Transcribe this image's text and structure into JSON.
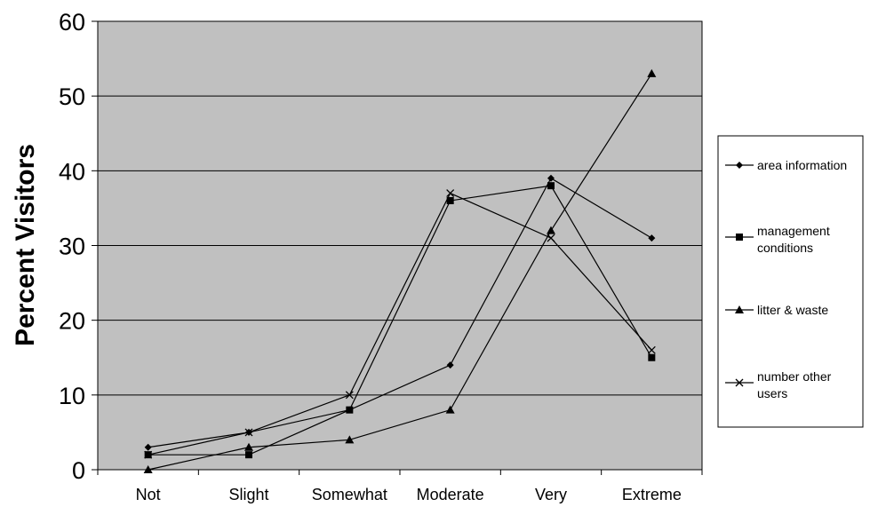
{
  "chart_data": {
    "type": "line",
    "title": "",
    "xlabel": "",
    "ylabel": "Percent Visitors",
    "categories": [
      "Not",
      "Slight",
      "Somewhat",
      "Moderate",
      "Very",
      "Extreme"
    ],
    "ylim": [
      0,
      60
    ],
    "yticks": [
      0,
      10,
      20,
      30,
      40,
      50,
      60
    ],
    "grid": true,
    "plot_background": "#c0c0c0",
    "legend_position": "right",
    "series": [
      {
        "name": "area information",
        "marker": "diamond",
        "values": [
          3,
          5,
          8,
          14,
          39,
          31
        ]
      },
      {
        "name": "management conditions",
        "marker": "square",
        "values": [
          2,
          2,
          8,
          36,
          38,
          15
        ]
      },
      {
        "name": "litter & waste",
        "marker": "triangle",
        "values": [
          0,
          3,
          4,
          8,
          32,
          53
        ]
      },
      {
        "name": "number other users",
        "marker": "x",
        "values": [
          2,
          5,
          10,
          37,
          31,
          16
        ]
      }
    ]
  }
}
